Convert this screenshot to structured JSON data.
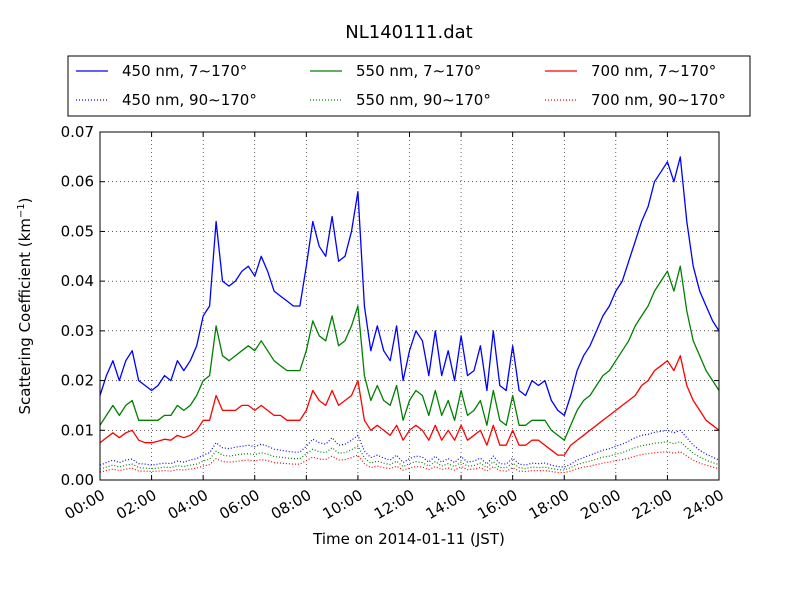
{
  "chart_data": {
    "type": "line",
    "title": "NL140111.dat",
    "xlabel": "Time on 2014-01-11 (JST)",
    "ylabel_prefix": "Scattering Coefficient (km",
    "ylabel_sup": "−1",
    "ylabel_suffix": ")",
    "xlim": [
      0,
      24
    ],
    "ylim": [
      0.0,
      0.07
    ],
    "x_ticks": [
      0,
      2,
      4,
      6,
      8,
      10,
      12,
      14,
      16,
      18,
      20,
      22,
      24
    ],
    "x_tick_labels": [
      "00:00",
      "02:00",
      "04:00",
      "06:00",
      "08:00",
      "10:00",
      "12:00",
      "14:00",
      "16:00",
      "18:00",
      "20:00",
      "22:00",
      "24:00"
    ],
    "y_ticks": [
      0.0,
      0.01,
      0.02,
      0.03,
      0.04,
      0.05,
      0.06,
      0.07
    ],
    "y_tick_labels": [
      "0.00",
      "0.01",
      "0.02",
      "0.03",
      "0.04",
      "0.05",
      "0.06",
      "0.07"
    ],
    "grid": true,
    "legend_position": "top",
    "x": [
      0.0,
      0.25,
      0.5,
      0.75,
      1.0,
      1.25,
      1.5,
      1.75,
      2.0,
      2.25,
      2.5,
      2.75,
      3.0,
      3.25,
      3.5,
      3.75,
      4.0,
      4.25,
      4.5,
      4.75,
      5.0,
      5.25,
      5.5,
      5.75,
      6.0,
      6.25,
      6.5,
      6.75,
      7.0,
      7.25,
      7.5,
      7.75,
      8.0,
      8.25,
      8.5,
      8.75,
      9.0,
      9.25,
      9.5,
      9.75,
      10.0,
      10.25,
      10.5,
      10.75,
      11.0,
      11.25,
      11.5,
      11.75,
      12.0,
      12.25,
      12.5,
      12.75,
      13.0,
      13.25,
      13.5,
      13.75,
      14.0,
      14.25,
      14.5,
      14.75,
      15.0,
      15.25,
      15.5,
      15.75,
      16.0,
      16.25,
      16.5,
      16.75,
      17.0,
      17.25,
      17.5,
      17.75,
      18.0,
      18.25,
      18.5,
      18.75,
      19.0,
      19.25,
      19.5,
      19.75,
      20.0,
      20.25,
      20.5,
      20.75,
      21.0,
      21.25,
      21.5,
      21.75,
      22.0,
      22.25,
      22.5,
      22.75,
      23.0,
      23.25,
      23.5,
      23.75,
      24.0
    ],
    "series": [
      {
        "name": "450 nm, 7∼170°",
        "color": "#0000ff",
        "style": "solid",
        "values": [
          0.017,
          0.021,
          0.024,
          0.02,
          0.024,
          0.026,
          0.02,
          0.019,
          0.018,
          0.019,
          0.021,
          0.02,
          0.024,
          0.022,
          0.024,
          0.027,
          0.033,
          0.035,
          0.052,
          0.04,
          0.039,
          0.04,
          0.042,
          0.043,
          0.041,
          0.045,
          0.042,
          0.038,
          0.037,
          0.036,
          0.035,
          0.035,
          0.043,
          0.052,
          0.047,
          0.045,
          0.053,
          0.044,
          0.045,
          0.05,
          0.058,
          0.035,
          0.026,
          0.031,
          0.026,
          0.024,
          0.031,
          0.02,
          0.026,
          0.03,
          0.028,
          0.021,
          0.03,
          0.021,
          0.026,
          0.02,
          0.029,
          0.021,
          0.022,
          0.027,
          0.018,
          0.03,
          0.019,
          0.018,
          0.027,
          0.018,
          0.017,
          0.02,
          0.019,
          0.02,
          0.016,
          0.014,
          0.013,
          0.017,
          0.022,
          0.025,
          0.027,
          0.03,
          0.033,
          0.035,
          0.038,
          0.04,
          0.044,
          0.048,
          0.052,
          0.055,
          0.06,
          0.062,
          0.064,
          0.06,
          0.065,
          0.052,
          0.043,
          0.038,
          0.035,
          0.032,
          0.03
        ]
      },
      {
        "name": "550 nm, 7∼170°",
        "color": "#008000",
        "style": "solid",
        "values": [
          0.011,
          0.013,
          0.015,
          0.013,
          0.015,
          0.016,
          0.012,
          0.012,
          0.012,
          0.012,
          0.013,
          0.013,
          0.015,
          0.014,
          0.015,
          0.017,
          0.02,
          0.021,
          0.031,
          0.025,
          0.024,
          0.025,
          0.026,
          0.027,
          0.026,
          0.028,
          0.026,
          0.024,
          0.023,
          0.022,
          0.022,
          0.022,
          0.026,
          0.032,
          0.029,
          0.028,
          0.033,
          0.027,
          0.028,
          0.031,
          0.035,
          0.021,
          0.016,
          0.019,
          0.016,
          0.015,
          0.019,
          0.012,
          0.016,
          0.018,
          0.017,
          0.013,
          0.018,
          0.013,
          0.016,
          0.012,
          0.018,
          0.013,
          0.014,
          0.016,
          0.011,
          0.018,
          0.012,
          0.011,
          0.017,
          0.011,
          0.011,
          0.012,
          0.012,
          0.012,
          0.01,
          0.009,
          0.008,
          0.011,
          0.014,
          0.016,
          0.017,
          0.019,
          0.021,
          0.022,
          0.024,
          0.026,
          0.028,
          0.031,
          0.033,
          0.035,
          0.038,
          0.04,
          0.042,
          0.038,
          0.043,
          0.034,
          0.028,
          0.025,
          0.022,
          0.02,
          0.018
        ]
      },
      {
        "name": "700 nm, 7∼170°",
        "color": "#ff0000",
        "style": "solid",
        "values": [
          0.0075,
          0.0085,
          0.0095,
          0.0085,
          0.0095,
          0.01,
          0.008,
          0.0075,
          0.0075,
          0.0078,
          0.0082,
          0.008,
          0.009,
          0.0085,
          0.009,
          0.01,
          0.012,
          0.012,
          0.017,
          0.014,
          0.014,
          0.014,
          0.015,
          0.015,
          0.014,
          0.015,
          0.014,
          0.013,
          0.013,
          0.012,
          0.012,
          0.012,
          0.014,
          0.018,
          0.016,
          0.015,
          0.018,
          0.015,
          0.016,
          0.017,
          0.02,
          0.012,
          0.01,
          0.011,
          0.01,
          0.009,
          0.011,
          0.008,
          0.01,
          0.011,
          0.01,
          0.008,
          0.011,
          0.008,
          0.01,
          0.008,
          0.011,
          0.008,
          0.009,
          0.01,
          0.007,
          0.011,
          0.007,
          0.007,
          0.01,
          0.007,
          0.007,
          0.008,
          0.008,
          0.007,
          0.006,
          0.005,
          0.005,
          0.007,
          0.008,
          0.009,
          0.01,
          0.011,
          0.012,
          0.013,
          0.014,
          0.015,
          0.016,
          0.017,
          0.019,
          0.02,
          0.022,
          0.023,
          0.024,
          0.022,
          0.025,
          0.019,
          0.016,
          0.014,
          0.012,
          0.011,
          0.01
        ]
      },
      {
        "name": "450 nm, 90∼170°",
        "color": "#0000ff",
        "style": "dotted",
        "values": [
          0.003,
          0.0035,
          0.004,
          0.0035,
          0.004,
          0.0042,
          0.0033,
          0.0032,
          0.003,
          0.0032,
          0.0034,
          0.0033,
          0.0038,
          0.0036,
          0.004,
          0.0043,
          0.005,
          0.0055,
          0.0075,
          0.0065,
          0.0063,
          0.0066,
          0.0068,
          0.007,
          0.0067,
          0.0072,
          0.0068,
          0.0062,
          0.006,
          0.0058,
          0.0056,
          0.0056,
          0.0068,
          0.0082,
          0.0075,
          0.0072,
          0.0085,
          0.007,
          0.0072,
          0.008,
          0.009,
          0.0058,
          0.0045,
          0.005,
          0.0044,
          0.004,
          0.005,
          0.0035,
          0.0043,
          0.0048,
          0.0046,
          0.0036,
          0.0048,
          0.0036,
          0.0043,
          0.0035,
          0.0047,
          0.0036,
          0.0038,
          0.0044,
          0.0032,
          0.0048,
          0.0033,
          0.0032,
          0.0044,
          0.0032,
          0.003,
          0.0034,
          0.0033,
          0.0034,
          0.003,
          0.0027,
          0.0026,
          0.0032,
          0.004,
          0.0045,
          0.005,
          0.0055,
          0.006,
          0.0063,
          0.0068,
          0.0072,
          0.0078,
          0.0085,
          0.009,
          0.0092,
          0.0096,
          0.0098,
          0.01,
          0.0095,
          0.01,
          0.0085,
          0.007,
          0.006,
          0.0052,
          0.0046,
          0.004
        ]
      },
      {
        "name": "550 nm, 90∼170°",
        "color": "#008000",
        "style": "dotted",
        "values": [
          0.0022,
          0.0026,
          0.003,
          0.0026,
          0.003,
          0.0032,
          0.0025,
          0.0024,
          0.0023,
          0.0024,
          0.0026,
          0.0025,
          0.0029,
          0.0027,
          0.003,
          0.0032,
          0.0038,
          0.0042,
          0.0058,
          0.005,
          0.0048,
          0.005,
          0.0052,
          0.0053,
          0.0051,
          0.0055,
          0.0052,
          0.0047,
          0.0046,
          0.0044,
          0.0043,
          0.0043,
          0.0052,
          0.0062,
          0.0057,
          0.0055,
          0.0065,
          0.0054,
          0.0055,
          0.0061,
          0.0068,
          0.0044,
          0.0034,
          0.0038,
          0.0034,
          0.0031,
          0.0038,
          0.0027,
          0.0033,
          0.0037,
          0.0035,
          0.0028,
          0.0037,
          0.0028,
          0.0033,
          0.0027,
          0.0036,
          0.0028,
          0.0029,
          0.0034,
          0.0025,
          0.0037,
          0.0025,
          0.0025,
          0.0034,
          0.0025,
          0.0023,
          0.0026,
          0.0025,
          0.0026,
          0.0023,
          0.0021,
          0.002,
          0.0025,
          0.0031,
          0.0035,
          0.0038,
          0.0042,
          0.0046,
          0.0048,
          0.0052,
          0.0055,
          0.006,
          0.0065,
          0.0069,
          0.0071,
          0.0074,
          0.0075,
          0.0077,
          0.0073,
          0.0077,
          0.0065,
          0.0054,
          0.0046,
          0.004,
          0.0035,
          0.0031
        ]
      },
      {
        "name": "700 nm, 90∼170°",
        "color": "#ff0000",
        "style": "dotted",
        "values": [
          0.0016,
          0.0019,
          0.0022,
          0.0019,
          0.0022,
          0.0024,
          0.0018,
          0.0018,
          0.0017,
          0.0018,
          0.0019,
          0.0018,
          0.0021,
          0.002,
          0.0022,
          0.0024,
          0.0028,
          0.0031,
          0.0043,
          0.0037,
          0.0036,
          0.0037,
          0.0039,
          0.004,
          0.0038,
          0.0041,
          0.0039,
          0.0035,
          0.0034,
          0.0033,
          0.0032,
          0.0032,
          0.0039,
          0.0046,
          0.0042,
          0.0041,
          0.0048,
          0.004,
          0.0041,
          0.0045,
          0.005,
          0.0033,
          0.0025,
          0.0028,
          0.0025,
          0.0023,
          0.0028,
          0.002,
          0.0024,
          0.0027,
          0.0026,
          0.0021,
          0.0027,
          0.0021,
          0.0024,
          0.002,
          0.0027,
          0.0021,
          0.0022,
          0.0025,
          0.0018,
          0.0027,
          0.0019,
          0.0018,
          0.0025,
          0.0018,
          0.0017,
          0.0019,
          0.0019,
          0.0019,
          0.0017,
          0.0015,
          0.0015,
          0.0018,
          0.0023,
          0.0026,
          0.0028,
          0.0031,
          0.0034,
          0.0036,
          0.0039,
          0.0041,
          0.0044,
          0.0048,
          0.0051,
          0.0053,
          0.0055,
          0.0056,
          0.0057,
          0.0054,
          0.0057,
          0.0048,
          0.004,
          0.0034,
          0.003,
          0.0026,
          0.0023
        ]
      }
    ],
    "legend_rows": [
      [
        "450 nm, 7∼170°",
        "550 nm, 7∼170°",
        "700 nm, 7∼170°"
      ],
      [
        "450 nm, 90∼170°",
        "550 nm, 90∼170°",
        "700 nm, 90∼170°"
      ]
    ]
  }
}
